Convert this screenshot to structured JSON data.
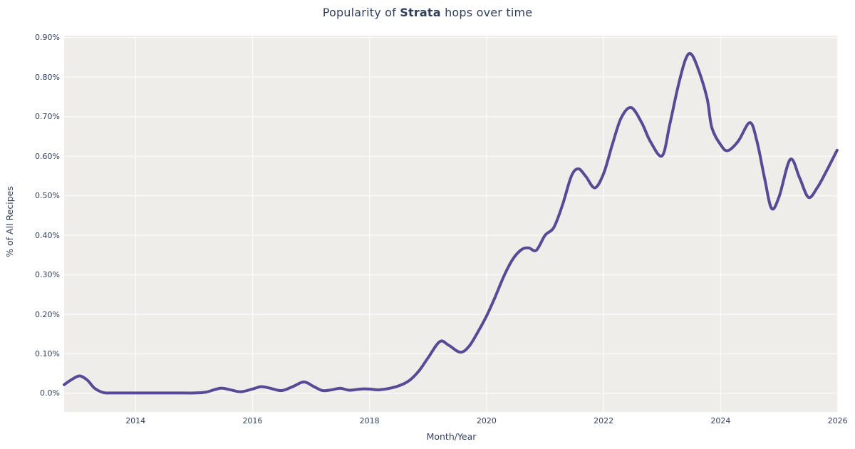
{
  "title": {
    "prefix": "Popularity of ",
    "bold": "Strata",
    "suffix": " hops over time"
  },
  "colors": {
    "line": "#584a94",
    "plot_background": "#efedea",
    "gridline": "#fbfaf9",
    "text": "#2f3f5c",
    "figure_background": "#ffffff"
  },
  "chart_data": {
    "type": "line",
    "title": "Popularity of Strata hops over time",
    "xlabel": "Month/Year",
    "ylabel": "% of All Recipes",
    "grid": true,
    "legend": false,
    "xlim": [
      2012.78,
      2026.01
    ],
    "ylim": [
      -0.047,
      0.905
    ],
    "x_ticks": [
      {
        "label": "2014",
        "value": 2014
      },
      {
        "label": "2016",
        "value": 2016
      },
      {
        "label": "2018",
        "value": 2018
      },
      {
        "label": "2020",
        "value": 2020
      },
      {
        "label": "2022",
        "value": 2022
      },
      {
        "label": "2024",
        "value": 2024
      },
      {
        "label": "2026",
        "value": 2026
      }
    ],
    "y_ticks": [
      {
        "label": "0.0%",
        "value": 0.0
      },
      {
        "label": "0.10%",
        "value": 0.1
      },
      {
        "label": "0.20%",
        "value": 0.2
      },
      {
        "label": "0.30%",
        "value": 0.3
      },
      {
        "label": "0.40%",
        "value": 0.4
      },
      {
        "label": "0.50%",
        "value": 0.5
      },
      {
        "label": "0.60%",
        "value": 0.6
      },
      {
        "label": "0.70%",
        "value": 0.7
      },
      {
        "label": "0.80%",
        "value": 0.8
      },
      {
        "label": "0.90%",
        "value": 0.9
      }
    ],
    "series": [
      {
        "name": "Strata",
        "color": "#584a94",
        "unit": "percent_of_all_recipes",
        "points": [
          [
            2012.78,
            0.022
          ],
          [
            2012.92,
            0.036
          ],
          [
            2013.05,
            0.044
          ],
          [
            2013.18,
            0.033
          ],
          [
            2013.3,
            0.013
          ],
          [
            2013.45,
            0.002
          ],
          [
            2013.6,
            0.001
          ],
          [
            2013.8,
            0.001
          ],
          [
            2014.0,
            0.001
          ],
          [
            2014.25,
            0.001
          ],
          [
            2014.5,
            0.001
          ],
          [
            2014.75,
            0.001
          ],
          [
            2015.0,
            0.001
          ],
          [
            2015.2,
            0.003
          ],
          [
            2015.45,
            0.013
          ],
          [
            2015.62,
            0.009
          ],
          [
            2015.8,
            0.004
          ],
          [
            2016.0,
            0.011
          ],
          [
            2016.15,
            0.017
          ],
          [
            2016.3,
            0.013
          ],
          [
            2016.5,
            0.007
          ],
          [
            2016.7,
            0.018
          ],
          [
            2016.88,
            0.029
          ],
          [
            2017.05,
            0.017
          ],
          [
            2017.2,
            0.007
          ],
          [
            2017.35,
            0.009
          ],
          [
            2017.5,
            0.013
          ],
          [
            2017.65,
            0.008
          ],
          [
            2017.85,
            0.011
          ],
          [
            2018.0,
            0.011
          ],
          [
            2018.15,
            0.009
          ],
          [
            2018.35,
            0.013
          ],
          [
            2018.55,
            0.022
          ],
          [
            2018.7,
            0.035
          ],
          [
            2018.85,
            0.058
          ],
          [
            2019.0,
            0.09
          ],
          [
            2019.2,
            0.131
          ],
          [
            2019.35,
            0.122
          ],
          [
            2019.55,
            0.104
          ],
          [
            2019.7,
            0.119
          ],
          [
            2019.85,
            0.155
          ],
          [
            2020.0,
            0.196
          ],
          [
            2020.15,
            0.245
          ],
          [
            2020.3,
            0.298
          ],
          [
            2020.45,
            0.34
          ],
          [
            2020.6,
            0.364
          ],
          [
            2020.72,
            0.368
          ],
          [
            2020.85,
            0.362
          ],
          [
            2021.0,
            0.4
          ],
          [
            2021.15,
            0.42
          ],
          [
            2021.3,
            0.478
          ],
          [
            2021.45,
            0.55
          ],
          [
            2021.57,
            0.568
          ],
          [
            2021.7,
            0.548
          ],
          [
            2021.85,
            0.52
          ],
          [
            2022.0,
            0.556
          ],
          [
            2022.15,
            0.63
          ],
          [
            2022.3,
            0.697
          ],
          [
            2022.47,
            0.723
          ],
          [
            2022.65,
            0.685
          ],
          [
            2022.8,
            0.637
          ],
          [
            2023.0,
            0.601
          ],
          [
            2023.13,
            0.68
          ],
          [
            2023.27,
            0.775
          ],
          [
            2023.4,
            0.845
          ],
          [
            2023.5,
            0.858
          ],
          [
            2023.63,
            0.815
          ],
          [
            2023.77,
            0.745
          ],
          [
            2023.85,
            0.672
          ],
          [
            2024.0,
            0.629
          ],
          [
            2024.12,
            0.614
          ],
          [
            2024.3,
            0.638
          ],
          [
            2024.5,
            0.685
          ],
          [
            2024.62,
            0.638
          ],
          [
            2024.75,
            0.545
          ],
          [
            2024.87,
            0.468
          ],
          [
            2025.0,
            0.498
          ],
          [
            2025.19,
            0.592
          ],
          [
            2025.35,
            0.545
          ],
          [
            2025.5,
            0.496
          ],
          [
            2025.65,
            0.52
          ],
          [
            2025.8,
            0.56
          ],
          [
            2025.99,
            0.615
          ]
        ]
      }
    ]
  }
}
